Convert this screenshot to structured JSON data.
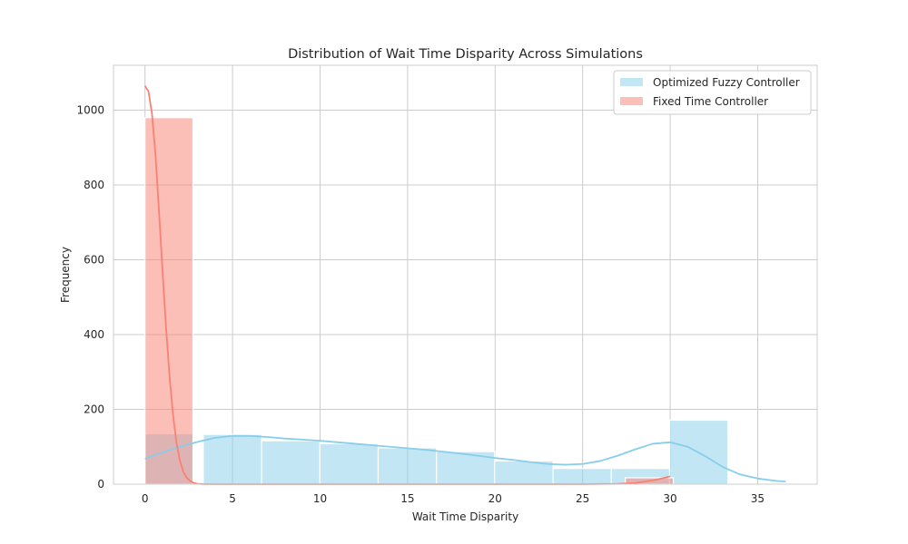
{
  "chart_data": {
    "type": "histogram",
    "title": "Distribution of Wait Time Disparity Across Simulations",
    "xlabel": "Wait Time Disparity",
    "ylabel": "Frequency",
    "xlim": [
      -1.8,
      38.4
    ],
    "ylim": [
      0,
      1120
    ],
    "xticks": [
      0,
      5,
      10,
      15,
      20,
      25,
      30,
      35
    ],
    "yticks": [
      0,
      200,
      400,
      600,
      800,
      1000
    ],
    "grid": true,
    "legend_position": "top-right",
    "series": [
      {
        "name": "Optimized Fuzzy Controller",
        "color": "#87CEEB",
        "bins": [
          {
            "x0": 0.0,
            "x1": 2.74,
            "count": 135
          },
          {
            "x0": 3.33,
            "x1": 6.66,
            "count": 133
          },
          {
            "x0": 6.66,
            "x1": 9.99,
            "count": 116
          },
          {
            "x0": 9.99,
            "x1": 13.32,
            "count": 108
          },
          {
            "x0": 13.32,
            "x1": 16.65,
            "count": 97
          },
          {
            "x0": 16.65,
            "x1": 19.98,
            "count": 87
          },
          {
            "x0": 19.98,
            "x1": 23.31,
            "count": 62
          },
          {
            "x0": 23.31,
            "x1": 26.64,
            "count": 42
          },
          {
            "x0": 26.64,
            "x1": 29.97,
            "count": 42
          },
          {
            "x0": 29.97,
            "x1": 33.3,
            "count": 171
          }
        ],
        "kde": [
          [
            0,
            68
          ],
          [
            1,
            85
          ],
          [
            2,
            100
          ],
          [
            3,
            113
          ],
          [
            4,
            124
          ],
          [
            5,
            129
          ],
          [
            6,
            129
          ],
          [
            7,
            126
          ],
          [
            8,
            122
          ],
          [
            9,
            119
          ],
          [
            10,
            116
          ],
          [
            11,
            112
          ],
          [
            12,
            108
          ],
          [
            13,
            104
          ],
          [
            14,
            100
          ],
          [
            15,
            96
          ],
          [
            16,
            92
          ],
          [
            17,
            87
          ],
          [
            18,
            82
          ],
          [
            19,
            76
          ],
          [
            20,
            70
          ],
          [
            21,
            65
          ],
          [
            22,
            59
          ],
          [
            23,
            54
          ],
          [
            24,
            52
          ],
          [
            25,
            54
          ],
          [
            26,
            62
          ],
          [
            27,
            76
          ],
          [
            28,
            93
          ],
          [
            29,
            108
          ],
          [
            30,
            112
          ],
          [
            31,
            100
          ],
          [
            32,
            75
          ],
          [
            33,
            46
          ],
          [
            34,
            26
          ],
          [
            35,
            15
          ],
          [
            36,
            9
          ],
          [
            36.6,
            7
          ]
        ]
      },
      {
        "name": "Fixed Time Controller",
        "color": "#FA8072",
        "bins": [
          {
            "x0": 0.0,
            "x1": 2.74,
            "count": 980
          },
          {
            "x0": 27.44,
            "x1": 30.18,
            "count": 17
          }
        ],
        "kde": [
          [
            0,
            1065
          ],
          [
            0.2,
            1050
          ],
          [
            0.4,
            990
          ],
          [
            0.6,
            880
          ],
          [
            0.8,
            730
          ],
          [
            1.0,
            570
          ],
          [
            1.2,
            420
          ],
          [
            1.4,
            290
          ],
          [
            1.6,
            185
          ],
          [
            1.8,
            110
          ],
          [
            2.0,
            62
          ],
          [
            2.2,
            32
          ],
          [
            2.4,
            16
          ],
          [
            2.6,
            8
          ],
          [
            2.8,
            3
          ],
          [
            3.0,
            1
          ],
          [
            3.5,
            0
          ],
          [
            5,
            0
          ],
          [
            10,
            0
          ],
          [
            15,
            0
          ],
          [
            20,
            0
          ],
          [
            25,
            0
          ],
          [
            27,
            1
          ],
          [
            28,
            3
          ],
          [
            29,
            10
          ],
          [
            29.5,
            15
          ],
          [
            30,
            21
          ]
        ]
      }
    ]
  }
}
